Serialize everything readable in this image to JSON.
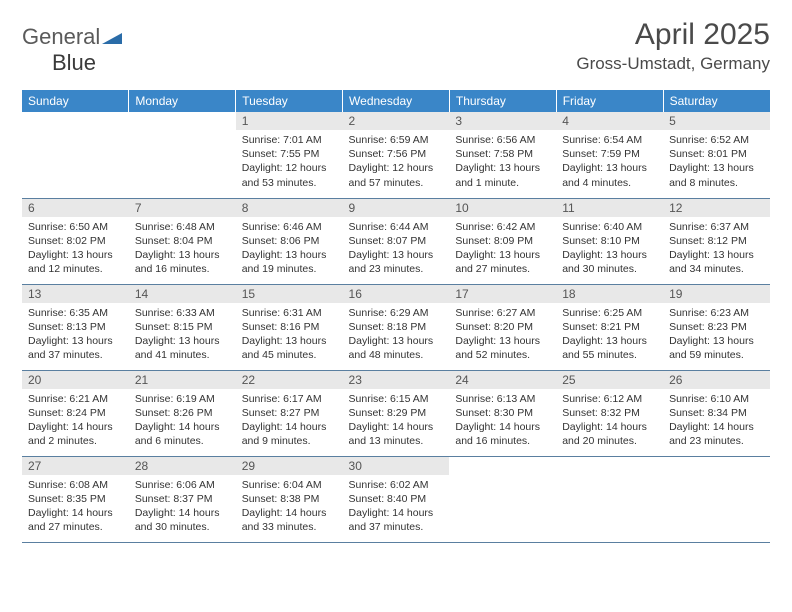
{
  "logo": {
    "part1": "General",
    "part2": "Blue"
  },
  "title": "April 2025",
  "subtitle": "Gross-Umstadt, Germany",
  "colors": {
    "header_bg": "#3a86c8",
    "header_fg": "#ffffff",
    "daynum_bg": "#e8e8e8",
    "row_border": "#5a7fa0",
    "logo_shape": "#2a6ca8"
  },
  "weekdays": [
    "Sunday",
    "Monday",
    "Tuesday",
    "Wednesday",
    "Thursday",
    "Friday",
    "Saturday"
  ],
  "weeks": [
    [
      null,
      null,
      {
        "n": "1",
        "sr": "Sunrise: 7:01 AM",
        "ss": "Sunset: 7:55 PM",
        "dl": "Daylight: 12 hours and 53 minutes."
      },
      {
        "n": "2",
        "sr": "Sunrise: 6:59 AM",
        "ss": "Sunset: 7:56 PM",
        "dl": "Daylight: 12 hours and 57 minutes."
      },
      {
        "n": "3",
        "sr": "Sunrise: 6:56 AM",
        "ss": "Sunset: 7:58 PM",
        "dl": "Daylight: 13 hours and 1 minute."
      },
      {
        "n": "4",
        "sr": "Sunrise: 6:54 AM",
        "ss": "Sunset: 7:59 PM",
        "dl": "Daylight: 13 hours and 4 minutes."
      },
      {
        "n": "5",
        "sr": "Sunrise: 6:52 AM",
        "ss": "Sunset: 8:01 PM",
        "dl": "Daylight: 13 hours and 8 minutes."
      }
    ],
    [
      {
        "n": "6",
        "sr": "Sunrise: 6:50 AM",
        "ss": "Sunset: 8:02 PM",
        "dl": "Daylight: 13 hours and 12 minutes."
      },
      {
        "n": "7",
        "sr": "Sunrise: 6:48 AM",
        "ss": "Sunset: 8:04 PM",
        "dl": "Daylight: 13 hours and 16 minutes."
      },
      {
        "n": "8",
        "sr": "Sunrise: 6:46 AM",
        "ss": "Sunset: 8:06 PM",
        "dl": "Daylight: 13 hours and 19 minutes."
      },
      {
        "n": "9",
        "sr": "Sunrise: 6:44 AM",
        "ss": "Sunset: 8:07 PM",
        "dl": "Daylight: 13 hours and 23 minutes."
      },
      {
        "n": "10",
        "sr": "Sunrise: 6:42 AM",
        "ss": "Sunset: 8:09 PM",
        "dl": "Daylight: 13 hours and 27 minutes."
      },
      {
        "n": "11",
        "sr": "Sunrise: 6:40 AM",
        "ss": "Sunset: 8:10 PM",
        "dl": "Daylight: 13 hours and 30 minutes."
      },
      {
        "n": "12",
        "sr": "Sunrise: 6:37 AM",
        "ss": "Sunset: 8:12 PM",
        "dl": "Daylight: 13 hours and 34 minutes."
      }
    ],
    [
      {
        "n": "13",
        "sr": "Sunrise: 6:35 AM",
        "ss": "Sunset: 8:13 PM",
        "dl": "Daylight: 13 hours and 37 minutes."
      },
      {
        "n": "14",
        "sr": "Sunrise: 6:33 AM",
        "ss": "Sunset: 8:15 PM",
        "dl": "Daylight: 13 hours and 41 minutes."
      },
      {
        "n": "15",
        "sr": "Sunrise: 6:31 AM",
        "ss": "Sunset: 8:16 PM",
        "dl": "Daylight: 13 hours and 45 minutes."
      },
      {
        "n": "16",
        "sr": "Sunrise: 6:29 AM",
        "ss": "Sunset: 8:18 PM",
        "dl": "Daylight: 13 hours and 48 minutes."
      },
      {
        "n": "17",
        "sr": "Sunrise: 6:27 AM",
        "ss": "Sunset: 8:20 PM",
        "dl": "Daylight: 13 hours and 52 minutes."
      },
      {
        "n": "18",
        "sr": "Sunrise: 6:25 AM",
        "ss": "Sunset: 8:21 PM",
        "dl": "Daylight: 13 hours and 55 minutes."
      },
      {
        "n": "19",
        "sr": "Sunrise: 6:23 AM",
        "ss": "Sunset: 8:23 PM",
        "dl": "Daylight: 13 hours and 59 minutes."
      }
    ],
    [
      {
        "n": "20",
        "sr": "Sunrise: 6:21 AM",
        "ss": "Sunset: 8:24 PM",
        "dl": "Daylight: 14 hours and 2 minutes."
      },
      {
        "n": "21",
        "sr": "Sunrise: 6:19 AM",
        "ss": "Sunset: 8:26 PM",
        "dl": "Daylight: 14 hours and 6 minutes."
      },
      {
        "n": "22",
        "sr": "Sunrise: 6:17 AM",
        "ss": "Sunset: 8:27 PM",
        "dl": "Daylight: 14 hours and 9 minutes."
      },
      {
        "n": "23",
        "sr": "Sunrise: 6:15 AM",
        "ss": "Sunset: 8:29 PM",
        "dl": "Daylight: 14 hours and 13 minutes."
      },
      {
        "n": "24",
        "sr": "Sunrise: 6:13 AM",
        "ss": "Sunset: 8:30 PM",
        "dl": "Daylight: 14 hours and 16 minutes."
      },
      {
        "n": "25",
        "sr": "Sunrise: 6:12 AM",
        "ss": "Sunset: 8:32 PM",
        "dl": "Daylight: 14 hours and 20 minutes."
      },
      {
        "n": "26",
        "sr": "Sunrise: 6:10 AM",
        "ss": "Sunset: 8:34 PM",
        "dl": "Daylight: 14 hours and 23 minutes."
      }
    ],
    [
      {
        "n": "27",
        "sr": "Sunrise: 6:08 AM",
        "ss": "Sunset: 8:35 PM",
        "dl": "Daylight: 14 hours and 27 minutes."
      },
      {
        "n": "28",
        "sr": "Sunrise: 6:06 AM",
        "ss": "Sunset: 8:37 PM",
        "dl": "Daylight: 14 hours and 30 minutes."
      },
      {
        "n": "29",
        "sr": "Sunrise: 6:04 AM",
        "ss": "Sunset: 8:38 PM",
        "dl": "Daylight: 14 hours and 33 minutes."
      },
      {
        "n": "30",
        "sr": "Sunrise: 6:02 AM",
        "ss": "Sunset: 8:40 PM",
        "dl": "Daylight: 14 hours and 37 minutes."
      },
      null,
      null,
      null
    ]
  ]
}
